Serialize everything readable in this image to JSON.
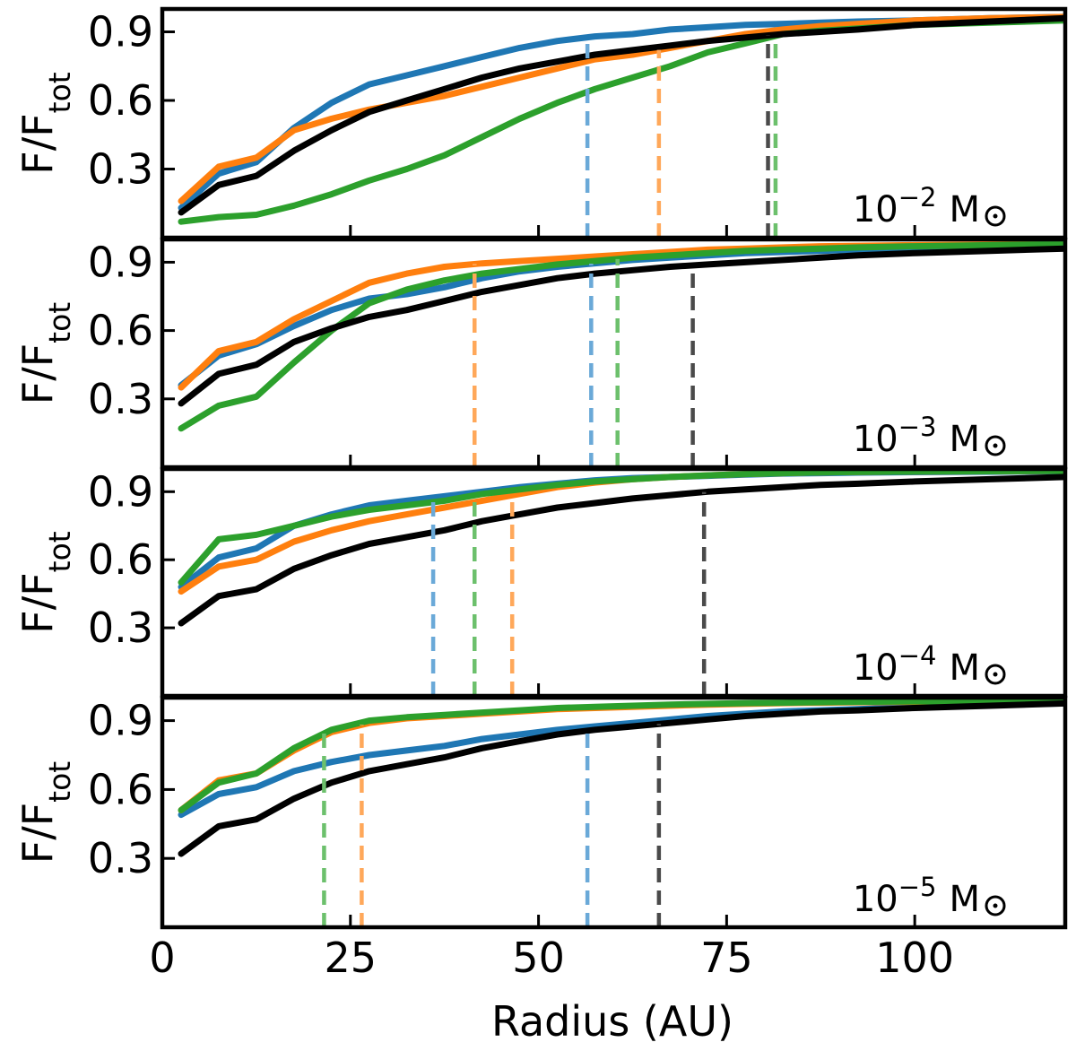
{
  "chart_data": {
    "type": "line",
    "xlabel": "Radius (AU)",
    "ylabel_main": "F/F",
    "ylabel_sub": "tot",
    "xlim": [
      0,
      120
    ],
    "ylim": [
      0,
      1.0
    ],
    "xticks": [
      0,
      25,
      50,
      75,
      100
    ],
    "yticks": [
      0.3,
      0.6,
      0.9
    ],
    "xtick_labels": [
      "0",
      "25",
      "50",
      "75",
      "100"
    ],
    "ytick_labels": [
      "0.3",
      "0.6",
      "0.9"
    ],
    "colors": {
      "blue": "#1f77b4",
      "orange": "#ff7f0e",
      "green": "#2ca02c",
      "black": "#000000"
    },
    "vline_colors": {
      "blue": "#6aa9d8",
      "orange": "#ffa85a",
      "green": "#6cc06c",
      "black": "#4a4a4a"
    },
    "panels": [
      {
        "label_base": "10",
        "label_exp": "−2",
        "label_unit": "M",
        "series": [
          {
            "name": "blue",
            "x": [
              2.5,
              7.5,
              12.5,
              17.5,
              22.5,
              27.5,
              32.5,
              37.5,
              42.5,
              47.5,
              52.5,
              57.5,
              62.5,
              67.5,
              72.5,
              77.5,
              82.5,
              87.5,
              92.5,
              100,
              110,
              120
            ],
            "y": [
              0.13,
              0.28,
              0.33,
              0.48,
              0.59,
              0.67,
              0.71,
              0.75,
              0.79,
              0.83,
              0.86,
              0.88,
              0.89,
              0.91,
              0.92,
              0.93,
              0.935,
              0.94,
              0.945,
              0.95,
              0.96,
              0.965
            ]
          },
          {
            "name": "orange",
            "x": [
              2.5,
              7.5,
              12.5,
              17.5,
              22.5,
              27.5,
              32.5,
              37.5,
              42.5,
              47.5,
              52.5,
              57.5,
              62.5,
              67.5,
              72.5,
              77.5,
              82.5,
              87.5,
              92.5,
              100,
              110,
              120
            ],
            "y": [
              0.16,
              0.31,
              0.35,
              0.47,
              0.52,
              0.56,
              0.59,
              0.62,
              0.66,
              0.7,
              0.74,
              0.78,
              0.8,
              0.83,
              0.86,
              0.89,
              0.91,
              0.925,
              0.935,
              0.95,
              0.96,
              0.965
            ]
          },
          {
            "name": "green",
            "x": [
              2.5,
              7.5,
              12.5,
              17.5,
              22.5,
              27.5,
              32.5,
              37.5,
              42.5,
              47.5,
              52.5,
              57.5,
              62.5,
              67.5,
              72.5,
              77.5,
              82.5,
              87.5,
              92.5,
              100,
              110,
              120
            ],
            "y": [
              0.07,
              0.09,
              0.1,
              0.14,
              0.19,
              0.25,
              0.3,
              0.36,
              0.44,
              0.52,
              0.59,
              0.65,
              0.7,
              0.75,
              0.81,
              0.85,
              0.89,
              0.905,
              0.915,
              0.93,
              0.94,
              0.95
            ]
          },
          {
            "name": "black",
            "x": [
              2.5,
              7.5,
              12.5,
              17.5,
              22.5,
              27.5,
              32.5,
              37.5,
              42.5,
              47.5,
              52.5,
              57.5,
              62.5,
              67.5,
              72.5,
              77.5,
              82.5,
              87.5,
              92.5,
              100,
              110,
              120
            ],
            "y": [
              0.11,
              0.23,
              0.27,
              0.38,
              0.47,
              0.55,
              0.6,
              0.65,
              0.7,
              0.74,
              0.77,
              0.8,
              0.82,
              0.84,
              0.86,
              0.875,
              0.89,
              0.9,
              0.91,
              0.93,
              0.945,
              0.96
            ]
          }
        ],
        "vlines": [
          {
            "color": "blue",
            "x": 56.5
          },
          {
            "color": "orange",
            "x": 66
          },
          {
            "color": "black",
            "x": 80.5
          },
          {
            "color": "green",
            "x": 81.5
          }
        ]
      },
      {
        "label_base": "10",
        "label_exp": "−3",
        "label_unit": "M",
        "series": [
          {
            "name": "blue",
            "x": [
              2.5,
              7.5,
              12.5,
              17.5,
              22.5,
              27.5,
              32.5,
              37.5,
              42.5,
              47.5,
              52.5,
              57.5,
              62.5,
              67.5,
              72.5,
              77.5,
              82.5,
              87.5,
              92.5,
              100,
              110,
              120
            ],
            "y": [
              0.36,
              0.49,
              0.54,
              0.62,
              0.69,
              0.74,
              0.76,
              0.79,
              0.83,
              0.86,
              0.88,
              0.895,
              0.91,
              0.92,
              0.93,
              0.94,
              0.945,
              0.95,
              0.955,
              0.96,
              0.965,
              0.97
            ]
          },
          {
            "name": "orange",
            "x": [
              2.5,
              7.5,
              12.5,
              17.5,
              22.5,
              27.5,
              32.5,
              37.5,
              42.5,
              47.5,
              52.5,
              57.5,
              62.5,
              67.5,
              72.5,
              77.5,
              82.5,
              87.5,
              92.5,
              100,
              110,
              120
            ],
            "y": [
              0.35,
              0.51,
              0.55,
              0.65,
              0.73,
              0.81,
              0.85,
              0.88,
              0.895,
              0.905,
              0.915,
              0.925,
              0.935,
              0.945,
              0.955,
              0.96,
              0.965,
              0.97,
              0.972,
              0.975,
              0.978,
              0.98
            ]
          },
          {
            "name": "green",
            "x": [
              2.5,
              7.5,
              12.5,
              17.5,
              22.5,
              27.5,
              32.5,
              37.5,
              42.5,
              47.5,
              52.5,
              57.5,
              62.5,
              67.5,
              72.5,
              77.5,
              82.5,
              87.5,
              92.5,
              100,
              110,
              120
            ],
            "y": [
              0.17,
              0.27,
              0.31,
              0.46,
              0.6,
              0.72,
              0.78,
              0.82,
              0.85,
              0.87,
              0.89,
              0.905,
              0.92,
              0.93,
              0.94,
              0.95,
              0.955,
              0.96,
              0.965,
              0.97,
              0.975,
              0.98
            ]
          },
          {
            "name": "black",
            "x": [
              2.5,
              7.5,
              12.5,
              17.5,
              22.5,
              27.5,
              32.5,
              37.5,
              42.5,
              47.5,
              52.5,
              57.5,
              62.5,
              67.5,
              72.5,
              77.5,
              82.5,
              87.5,
              92.5,
              100,
              110,
              120
            ],
            "y": [
              0.28,
              0.41,
              0.45,
              0.55,
              0.61,
              0.66,
              0.69,
              0.73,
              0.77,
              0.8,
              0.83,
              0.85,
              0.865,
              0.88,
              0.89,
              0.9,
              0.91,
              0.92,
              0.93,
              0.94,
              0.95,
              0.96
            ]
          }
        ],
        "vlines": [
          {
            "color": "orange",
            "x": 41.5
          },
          {
            "color": "blue",
            "x": 57
          },
          {
            "color": "green",
            "x": 60.5
          },
          {
            "color": "black",
            "x": 70.5
          }
        ]
      },
      {
        "label_base": "10",
        "label_exp": "−4",
        "label_unit": "M",
        "series": [
          {
            "name": "blue",
            "x": [
              2.5,
              7.5,
              12.5,
              17.5,
              22.5,
              27.5,
              32.5,
              37.5,
              42.5,
              47.5,
              52.5,
              57.5,
              62.5,
              67.5,
              72.5,
              77.5,
              82.5,
              87.5,
              92.5,
              100,
              110,
              120
            ],
            "y": [
              0.48,
              0.61,
              0.65,
              0.75,
              0.8,
              0.84,
              0.86,
              0.88,
              0.9,
              0.92,
              0.935,
              0.95,
              0.96,
              0.965,
              0.97,
              0.975,
              0.98,
              0.982,
              0.984,
              0.986,
              0.988,
              0.99
            ]
          },
          {
            "name": "orange",
            "x": [
              2.5,
              7.5,
              12.5,
              17.5,
              22.5,
              27.5,
              32.5,
              37.5,
              42.5,
              47.5,
              52.5,
              57.5,
              62.5,
              67.5,
              72.5,
              77.5,
              82.5,
              87.5,
              92.5,
              100,
              110,
              120
            ],
            "y": [
              0.46,
              0.57,
              0.6,
              0.68,
              0.73,
              0.77,
              0.8,
              0.83,
              0.86,
              0.89,
              0.92,
              0.94,
              0.955,
              0.965,
              0.972,
              0.978,
              0.982,
              0.985,
              0.987,
              0.989,
              0.99,
              0.992
            ]
          },
          {
            "name": "green",
            "x": [
              2.5,
              7.5,
              12.5,
              17.5,
              22.5,
              27.5,
              32.5,
              37.5,
              42.5,
              47.5,
              52.5,
              57.5,
              62.5,
              67.5,
              72.5,
              77.5,
              82.5,
              87.5,
              92.5,
              100,
              110,
              120
            ],
            "y": [
              0.5,
              0.69,
              0.71,
              0.75,
              0.79,
              0.82,
              0.84,
              0.86,
              0.89,
              0.91,
              0.93,
              0.945,
              0.955,
              0.965,
              0.972,
              0.978,
              0.982,
              0.985,
              0.987,
              0.989,
              0.99,
              0.992
            ]
          },
          {
            "name": "black",
            "x": [
              2.5,
              7.5,
              12.5,
              17.5,
              22.5,
              27.5,
              32.5,
              37.5,
              42.5,
              47.5,
              52.5,
              57.5,
              62.5,
              67.5,
              72.5,
              77.5,
              82.5,
              87.5,
              92.5,
              100,
              110,
              120
            ],
            "y": [
              0.32,
              0.44,
              0.47,
              0.56,
              0.62,
              0.67,
              0.7,
              0.73,
              0.77,
              0.8,
              0.83,
              0.85,
              0.87,
              0.885,
              0.9,
              0.91,
              0.92,
              0.93,
              0.935,
              0.945,
              0.955,
              0.965
            ]
          }
        ],
        "vlines": [
          {
            "color": "blue",
            "x": 36
          },
          {
            "color": "green",
            "x": 41.5
          },
          {
            "color": "orange",
            "x": 46.5
          },
          {
            "color": "black",
            "x": 72
          }
        ]
      },
      {
        "label_base": "10",
        "label_exp": "−5",
        "label_unit": "M",
        "series": [
          {
            "name": "blue",
            "x": [
              2.5,
              7.5,
              12.5,
              17.5,
              22.5,
              27.5,
              32.5,
              37.5,
              42.5,
              47.5,
              52.5,
              57.5,
              62.5,
              67.5,
              72.5,
              77.5,
              82.5,
              87.5,
              92.5,
              100,
              110,
              120
            ],
            "y": [
              0.49,
              0.58,
              0.61,
              0.68,
              0.72,
              0.75,
              0.77,
              0.79,
              0.82,
              0.84,
              0.86,
              0.875,
              0.89,
              0.905,
              0.92,
              0.93,
              0.94,
              0.945,
              0.95,
              0.96,
              0.97,
              0.975
            ]
          },
          {
            "name": "orange",
            "x": [
              2.5,
              7.5,
              12.5,
              17.5,
              22.5,
              27.5,
              32.5,
              37.5,
              42.5,
              47.5,
              52.5,
              57.5,
              62.5,
              67.5,
              72.5,
              77.5,
              82.5,
              87.5,
              92.5,
              100,
              110,
              120
            ],
            "y": [
              0.51,
              0.64,
              0.67,
              0.77,
              0.85,
              0.89,
              0.91,
              0.92,
              0.93,
              0.94,
              0.95,
              0.955,
              0.96,
              0.965,
              0.97,
              0.973,
              0.976,
              0.978,
              0.98,
              0.982,
              0.985,
              0.988
            ]
          },
          {
            "name": "green",
            "x": [
              2.5,
              7.5,
              12.5,
              17.5,
              22.5,
              27.5,
              32.5,
              37.5,
              42.5,
              47.5,
              52.5,
              57.5,
              62.5,
              67.5,
              72.5,
              77.5,
              82.5,
              87.5,
              92.5,
              100,
              110,
              120
            ],
            "y": [
              0.51,
              0.63,
              0.67,
              0.78,
              0.86,
              0.9,
              0.915,
              0.925,
              0.935,
              0.945,
              0.955,
              0.96,
              0.965,
              0.97,
              0.973,
              0.976,
              0.978,
              0.98,
              0.982,
              0.984,
              0.986,
              0.988
            ]
          },
          {
            "name": "black",
            "x": [
              2.5,
              7.5,
              12.5,
              17.5,
              22.5,
              27.5,
              32.5,
              37.5,
              42.5,
              47.5,
              52.5,
              57.5,
              62.5,
              67.5,
              72.5,
              77.5,
              82.5,
              87.5,
              92.5,
              100,
              110,
              120
            ],
            "y": [
              0.32,
              0.44,
              0.47,
              0.56,
              0.63,
              0.68,
              0.71,
              0.74,
              0.78,
              0.81,
              0.84,
              0.86,
              0.875,
              0.89,
              0.905,
              0.92,
              0.93,
              0.94,
              0.945,
              0.955,
              0.965,
              0.975
            ]
          }
        ],
        "vlines": [
          {
            "color": "green",
            "x": 21.5
          },
          {
            "color": "orange",
            "x": 26.5
          },
          {
            "color": "blue",
            "x": 56.5
          },
          {
            "color": "black",
            "x": 66
          }
        ]
      }
    ]
  }
}
